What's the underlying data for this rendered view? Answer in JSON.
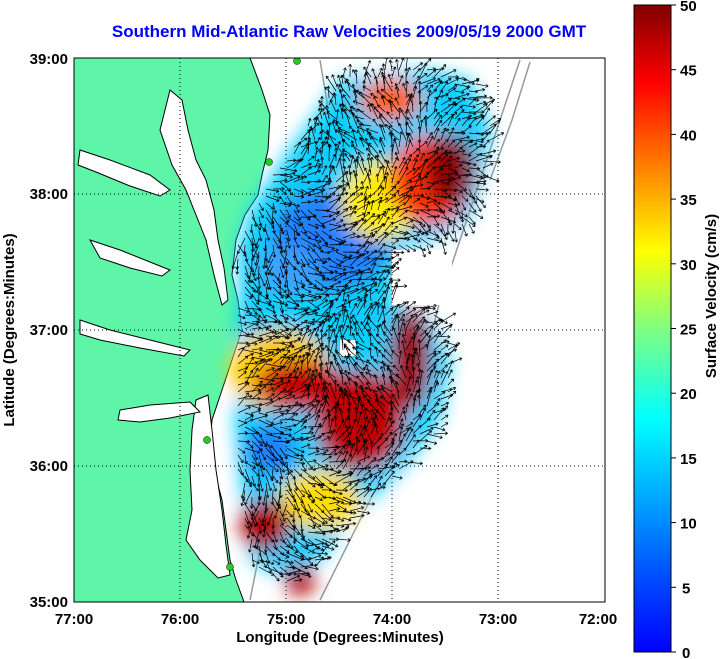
{
  "title": "Southern Mid-Atlantic Raw Velocities 2009/05/19 2000 GMT",
  "x_axis": {
    "label": "Longitude (Degrees:Minutes)",
    "ticks": [
      "77:00",
      "76:00",
      "75:00",
      "74:00",
      "73:00",
      "72:00"
    ]
  },
  "y_axis": {
    "label": "Latitude (Degrees:Minutes)",
    "ticks": [
      "39:00",
      "38:00",
      "37:00",
      "36:00",
      "35:00"
    ]
  },
  "colorbar": {
    "label": "Surface Velocity (cm/s)",
    "ticks": [
      "50",
      "45",
      "40",
      "35",
      "30",
      "25",
      "20",
      "15",
      "10",
      "5",
      "0"
    ],
    "range": [
      0,
      50
    ],
    "colormap": "jet"
  },
  "colors": {
    "title": "#0000ff",
    "land": "#5ef5a8",
    "coastline": "#000000",
    "gridline": "#000000",
    "station": "#22cc22",
    "bathymetry": "#999999"
  },
  "map": {
    "projection": "lat-lon",
    "lon_range": [
      -77,
      -72
    ],
    "lat_range": [
      35,
      39
    ],
    "grid": "dotted",
    "field": "surface current velocity vectors over color-shaded speed"
  }
}
